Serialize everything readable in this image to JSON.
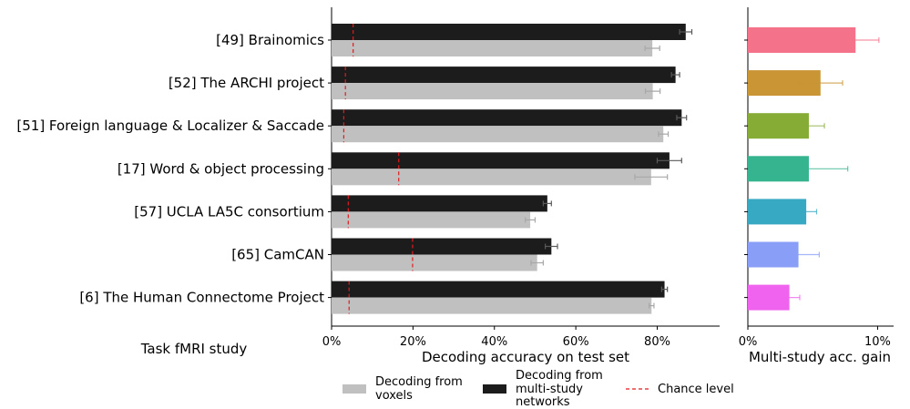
{
  "chart_data": [
    {
      "type": "bar",
      "orientation": "horizontal",
      "categories": [
        "[49] Brainomics",
        "[52] The ARCHI project",
        "[51] Foreign language & Localizer & Saccade",
        "[17] Word & object processing",
        "[57] UCLA LA5C consortium",
        "[65] CamCAN",
        "[6] The Human Connectome Project"
      ],
      "series": [
        {
          "name": "Decoding from multi-study networks",
          "color": "#1c1c1c",
          "values": [
            87.0,
            84.5,
            86.0,
            83.0,
            53.0,
            54.0,
            81.8
          ],
          "errors": [
            1.5,
            1.0,
            1.2,
            3.0,
            1.0,
            1.5,
            0.7
          ]
        },
        {
          "name": "Decoding from voxels",
          "color": "#c0c0c0",
          "values": [
            78.8,
            78.9,
            81.5,
            78.5,
            48.8,
            50.5,
            78.6
          ],
          "errors": [
            1.8,
            1.8,
            1.2,
            4.0,
            1.2,
            1.5,
            0.6
          ]
        }
      ],
      "chance_level": [
        5.3,
        3.4,
        3.0,
        16.5,
        4.1,
        19.9,
        4.3
      ],
      "chance_label": "Chance level",
      "chance_color": "#e31a1c",
      "ylabel": "Task fMRI study",
      "xlabel": "Decoding accuracy on test set",
      "xlim": [
        0,
        93
      ],
      "xticks": [
        0,
        20,
        40,
        60,
        80
      ],
      "xtick_labels": [
        "0%",
        "20%",
        "40%",
        "60%",
        "80%"
      ],
      "legend": {
        "position": "bottom",
        "voxels_label": [
          "Decoding from",
          "voxels"
        ],
        "networks_label": [
          "Decoding from",
          "multi-study",
          "networks"
        ],
        "chance_label": "Chance level"
      }
    },
    {
      "type": "bar",
      "orientation": "horizontal",
      "categories": [
        "[49] Brainomics",
        "[52] The ARCHI project",
        "[51] Foreign language & Localizer & Saccade",
        "[17] Word & object processing",
        "[57] UCLA LA5C consortium",
        "[65] CamCAN",
        "[6] The Human Connectome Project"
      ],
      "values": [
        8.3,
        5.6,
        4.7,
        4.7,
        4.5,
        3.9,
        3.2
      ],
      "errors": [
        1.8,
        1.7,
        1.2,
        3.0,
        0.8,
        1.6,
        0.8
      ],
      "colors": [
        "#f5738a",
        "#c99535",
        "#87ac36",
        "#36b48f",
        "#38a9c3",
        "#889ef7",
        "#f063ee"
      ],
      "xlabel": "Multi-study acc. gain",
      "xlim": [
        0,
        10.6
      ],
      "xticks": [
        0,
        10
      ],
      "xtick_labels": [
        "0%",
        "10%"
      ]
    }
  ]
}
